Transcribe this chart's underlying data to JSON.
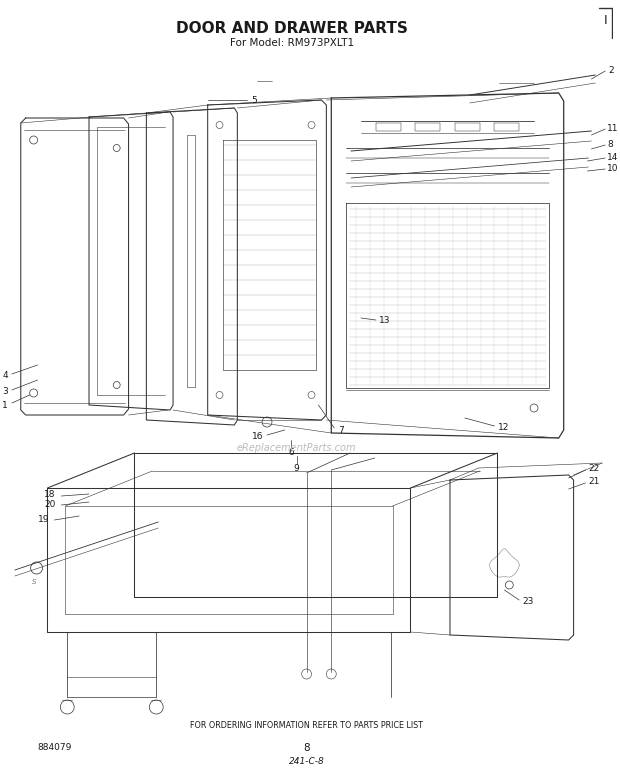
{
  "title": "DOOR AND DRAWER PARTS",
  "subtitle": "For Model: RM973PXLT1",
  "footer_text": "FOR ORDERING INFORMATION REFER TO PARTS PRICE LIST",
  "page_number": "8",
  "doc_number": "241-C-8",
  "part_number": "884079",
  "bg_color": "#ffffff",
  "text_color": "#1a1a1a",
  "line_color": "#333333",
  "watermark": "eReplacementParts.com",
  "watermark_color": "#bbbbbb"
}
